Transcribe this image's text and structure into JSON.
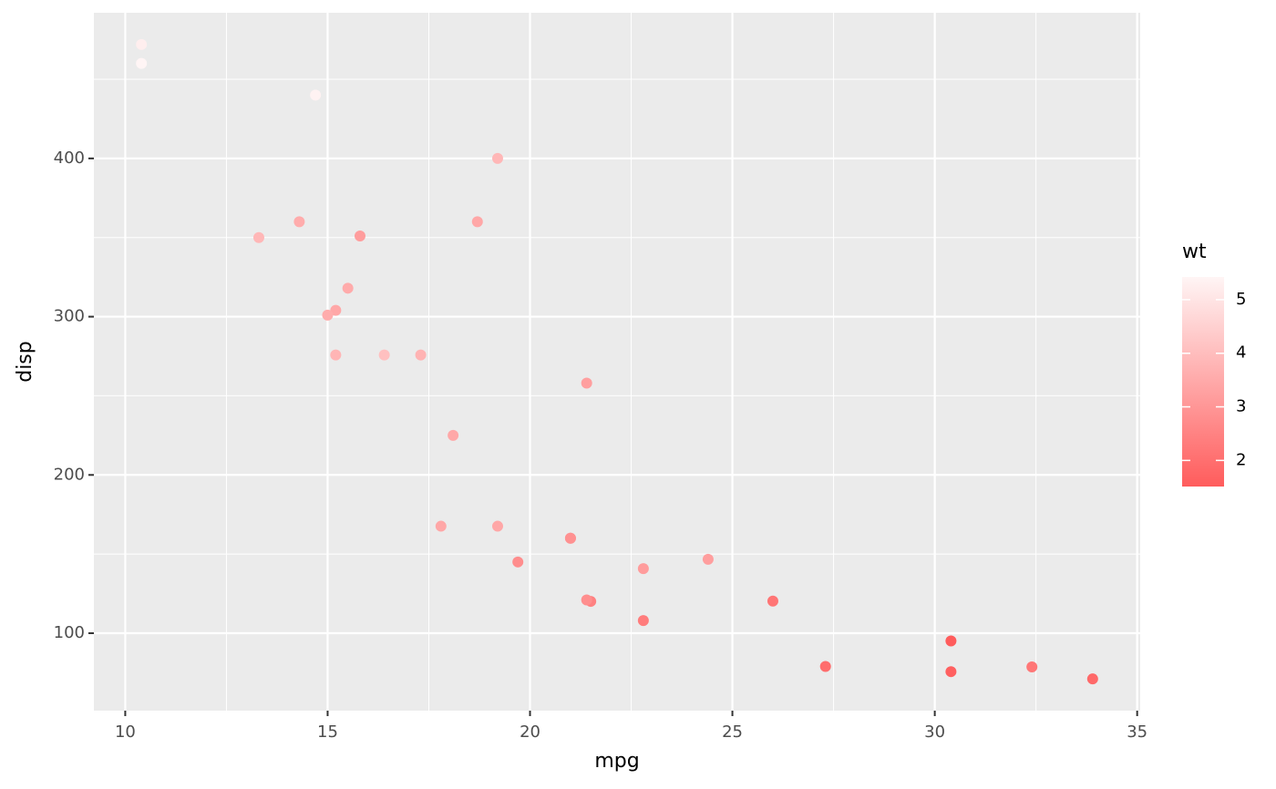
{
  "chart_data": {
    "type": "scatter",
    "x": [
      21.0,
      21.0,
      22.8,
      21.4,
      18.7,
      18.1,
      14.3,
      24.4,
      22.8,
      19.2,
      17.8,
      16.4,
      17.3,
      15.2,
      10.4,
      10.4,
      14.7,
      32.4,
      30.4,
      33.9,
      21.5,
      15.5,
      15.2,
      13.3,
      19.2,
      27.3,
      26.0,
      30.4,
      15.8,
      19.7,
      15.0,
      21.4
    ],
    "y": [
      160,
      160,
      108,
      258,
      360,
      225,
      360,
      146.7,
      140.8,
      167.6,
      167.6,
      275.8,
      275.8,
      275.8,
      472,
      460,
      440,
      78.7,
      75.7,
      71.1,
      120.1,
      318,
      304,
      350,
      400,
      79,
      120.3,
      95.1,
      351,
      145,
      301,
      121
    ],
    "color_values": [
      2.62,
      2.875,
      2.32,
      3.215,
      3.44,
      3.46,
      3.57,
      3.19,
      3.15,
      3.44,
      3.44,
      4.07,
      3.73,
      3.78,
      5.25,
      5.424,
      5.345,
      2.2,
      1.615,
      1.835,
      2.465,
      3.52,
      3.435,
      3.84,
      3.845,
      1.935,
      2.14,
      1.513,
      3.17,
      2.77,
      3.57,
      2.78
    ],
    "xlabel": "mpg",
    "ylabel": "disp",
    "legend_title": "wt",
    "xlim": [
      9.225,
      35.075
    ],
    "ylim": [
      51.055,
      492.045
    ],
    "xticks": [
      10,
      15,
      20,
      25,
      30,
      35
    ],
    "yticks": [
      100,
      200,
      300,
      400
    ],
    "colorlim": [
      1.513,
      5.424
    ],
    "colorticks": [
      2,
      3,
      4,
      5
    ],
    "color_low": "#ff5c5c",
    "color_high": "#fff5f5",
    "grid": true,
    "legend": "right"
  }
}
